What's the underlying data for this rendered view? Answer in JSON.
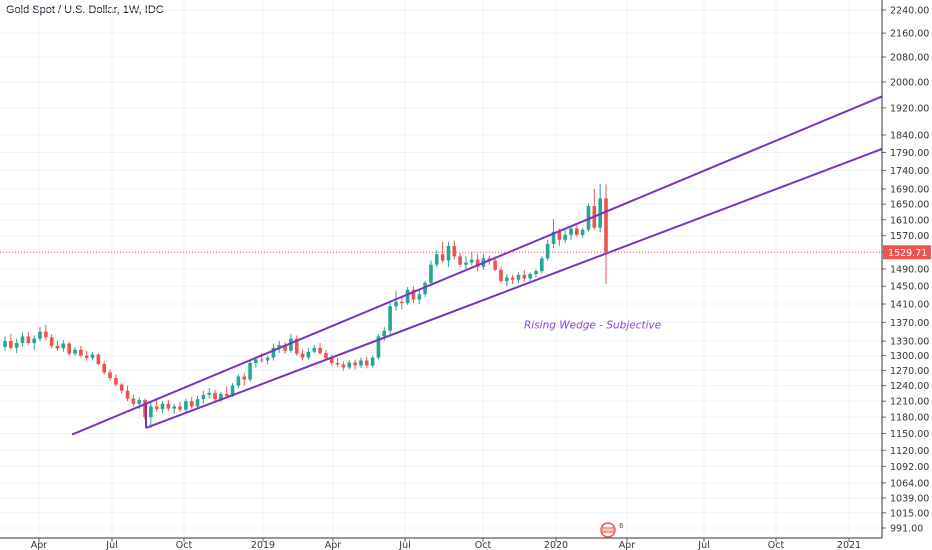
{
  "header": {
    "title": "Gold Spot / U.S. Dollar, 1W, IDC"
  },
  "chart_data": {
    "type": "candlestick",
    "symbol": "Gold Spot / U.S. Dollar",
    "interval": "1W",
    "source": "IDC",
    "y_scale": "log",
    "ylim": [
      977,
      2290
    ],
    "y_ticks": [
      991,
      1015,
      1039,
      1064,
      1092,
      1120,
      1150,
      1180,
      1210,
      1240,
      1270,
      1300,
      1330,
      1370,
      1410,
      1450,
      1490,
      1530,
      1570,
      1610,
      1650,
      1690,
      1740,
      1790,
      1840,
      1920,
      2000,
      2080,
      2160,
      2240
    ],
    "y_tick_labels": [
      "991.00",
      "1015.00",
      "1039.00",
      "1064.00",
      "1092.00",
      "1120.00",
      "1150.00",
      "1180.00",
      "1210.00",
      "1240.00",
      "1270.00",
      "1300.00",
      "1330.00",
      "1370.00",
      "1410.00",
      "1450.00",
      "1490.00",
      "1530.00",
      "1570.00",
      "1610.00",
      "1650.00",
      "1690.00",
      "1740.00",
      "1790.00",
      "1840.00",
      "1920.00",
      "2000.00",
      "2080.00",
      "2160.00",
      "2240.00"
    ],
    "x_tick_labels": [
      "Apr",
      "Jul",
      "Oct",
      "2019",
      "Apr",
      "Jul",
      "Oct",
      "2020",
      "Apr",
      "Jul",
      "Oct",
      "2021"
    ],
    "last_price": 1529.71,
    "last_price_label": "1529.71",
    "up_color": "#26a69a",
    "down_color": "#ef5350",
    "candles": [
      [
        1318,
        1340,
        1310,
        1330
      ],
      [
        1330,
        1345,
        1312,
        1316
      ],
      [
        1316,
        1335,
        1305,
        1326
      ],
      [
        1326,
        1348,
        1318,
        1340
      ],
      [
        1340,
        1350,
        1322,
        1326
      ],
      [
        1326,
        1342,
        1312,
        1335
      ],
      [
        1335,
        1360,
        1330,
        1350
      ],
      [
        1350,
        1365,
        1332,
        1338
      ],
      [
        1338,
        1345,
        1315,
        1320
      ],
      [
        1320,
        1330,
        1310,
        1315
      ],
      [
        1315,
        1332,
        1308,
        1325
      ],
      [
        1325,
        1328,
        1300,
        1304
      ],
      [
        1304,
        1318,
        1300,
        1312
      ],
      [
        1312,
        1320,
        1296,
        1300
      ],
      [
        1300,
        1310,
        1290,
        1295
      ],
      [
        1295,
        1308,
        1290,
        1302
      ],
      [
        1302,
        1305,
        1280,
        1283
      ],
      [
        1283,
        1288,
        1262,
        1266
      ],
      [
        1266,
        1272,
        1250,
        1255
      ],
      [
        1255,
        1262,
        1238,
        1242
      ],
      [
        1242,
        1245,
        1225,
        1230
      ],
      [
        1230,
        1240,
        1210,
        1215
      ],
      [
        1215,
        1222,
        1200,
        1205
      ],
      [
        1205,
        1218,
        1195,
        1212
      ],
      [
        1212,
        1215,
        1175,
        1180
      ],
      [
        1180,
        1210,
        1160,
        1200
      ],
      [
        1200,
        1212,
        1190,
        1195
      ],
      [
        1195,
        1210,
        1188,
        1205
      ],
      [
        1205,
        1212,
        1192,
        1196
      ],
      [
        1196,
        1205,
        1186,
        1200
      ],
      [
        1200,
        1208,
        1190,
        1194
      ],
      [
        1194,
        1215,
        1188,
        1210
      ],
      [
        1210,
        1218,
        1196,
        1200
      ],
      [
        1200,
        1220,
        1195,
        1214
      ],
      [
        1214,
        1230,
        1205,
        1222
      ],
      [
        1222,
        1235,
        1215,
        1226
      ],
      [
        1226,
        1232,
        1210,
        1214
      ],
      [
        1214,
        1228,
        1208,
        1224
      ],
      [
        1224,
        1238,
        1215,
        1220
      ],
      [
        1220,
        1245,
        1218,
        1240
      ],
      [
        1240,
        1262,
        1235,
        1258
      ],
      [
        1258,
        1265,
        1240,
        1252
      ],
      [
        1252,
        1290,
        1248,
        1285
      ],
      [
        1285,
        1298,
        1276,
        1292
      ],
      [
        1292,
        1305,
        1285,
        1290
      ],
      [
        1290,
        1300,
        1282,
        1296
      ],
      [
        1296,
        1325,
        1290,
        1316
      ],
      [
        1316,
        1330,
        1305,
        1322
      ],
      [
        1322,
        1328,
        1304,
        1310
      ],
      [
        1310,
        1345,
        1306,
        1335
      ],
      [
        1335,
        1342,
        1300,
        1304
      ],
      [
        1304,
        1312,
        1290,
        1296
      ],
      [
        1296,
        1316,
        1292,
        1308
      ],
      [
        1308,
        1322,
        1304,
        1316
      ],
      [
        1316,
        1326,
        1302,
        1305
      ],
      [
        1305,
        1312,
        1290,
        1295
      ],
      [
        1295,
        1302,
        1280,
        1285
      ],
      [
        1285,
        1295,
        1276,
        1282
      ],
      [
        1282,
        1288,
        1270,
        1276
      ],
      [
        1276,
        1290,
        1272,
        1286
      ],
      [
        1286,
        1292,
        1272,
        1280
      ],
      [
        1280,
        1296,
        1275,
        1290
      ],
      [
        1290,
        1298,
        1274,
        1280
      ],
      [
        1280,
        1300,
        1276,
        1296
      ],
      [
        1296,
        1345,
        1292,
        1340
      ],
      [
        1340,
        1360,
        1330,
        1352
      ],
      [
        1352,
        1415,
        1345,
        1405
      ],
      [
        1405,
        1440,
        1395,
        1415
      ],
      [
        1415,
        1425,
        1398,
        1412
      ],
      [
        1412,
        1448,
        1408,
        1442
      ],
      [
        1442,
        1450,
        1412,
        1420
      ],
      [
        1420,
        1445,
        1410,
        1432
      ],
      [
        1432,
        1462,
        1426,
        1458
      ],
      [
        1458,
        1510,
        1455,
        1500
      ],
      [
        1500,
        1535,
        1494,
        1525
      ],
      [
        1525,
        1555,
        1505,
        1510
      ],
      [
        1510,
        1555,
        1495,
        1545
      ],
      [
        1545,
        1558,
        1512,
        1520
      ],
      [
        1520,
        1528,
        1495,
        1500
      ],
      [
        1500,
        1520,
        1485,
        1505
      ],
      [
        1505,
        1530,
        1498,
        1512
      ],
      [
        1512,
        1525,
        1485,
        1495
      ],
      [
        1495,
        1525,
        1488,
        1515
      ],
      [
        1515,
        1522,
        1500,
        1510
      ],
      [
        1510,
        1520,
        1485,
        1488
      ],
      [
        1488,
        1495,
        1456,
        1462
      ],
      [
        1462,
        1478,
        1450,
        1470
      ],
      [
        1470,
        1476,
        1455,
        1465
      ],
      [
        1465,
        1482,
        1458,
        1476
      ],
      [
        1476,
        1488,
        1460,
        1468
      ],
      [
        1468,
        1482,
        1462,
        1478
      ],
      [
        1478,
        1490,
        1470,
        1485
      ],
      [
        1485,
        1520,
        1480,
        1515
      ],
      [
        1515,
        1560,
        1510,
        1550
      ],
      [
        1550,
        1612,
        1540,
        1580
      ],
      [
        1580,
        1588,
        1545,
        1560
      ],
      [
        1560,
        1585,
        1552,
        1572
      ],
      [
        1572,
        1595,
        1560,
        1588
      ],
      [
        1588,
        1596,
        1568,
        1572
      ],
      [
        1572,
        1590,
        1565,
        1585
      ],
      [
        1585,
        1652,
        1580,
        1645
      ],
      [
        1645,
        1690,
        1585,
        1590
      ],
      [
        1590,
        1704,
        1578,
        1665
      ],
      [
        1665,
        1702,
        1455,
        1529.71
      ]
    ],
    "trendlines": [
      {
        "name": "upper channel line",
        "color": "#7a34bf",
        "points": [
          [
            "2018-05",
            1148
          ],
          [
            "2021-03",
            1955
          ]
        ]
      },
      {
        "name": "lower channel line",
        "color": "#7a34bf",
        "points": [
          [
            "2018-08",
            1160
          ],
          [
            "2021-03",
            1800
          ]
        ]
      }
    ],
    "annotations": [
      {
        "text": "Rising Wedge - Subjective",
        "color": "#8a45d6",
        "near_price": 1365
      }
    ],
    "grid": true,
    "legend": "none"
  }
}
